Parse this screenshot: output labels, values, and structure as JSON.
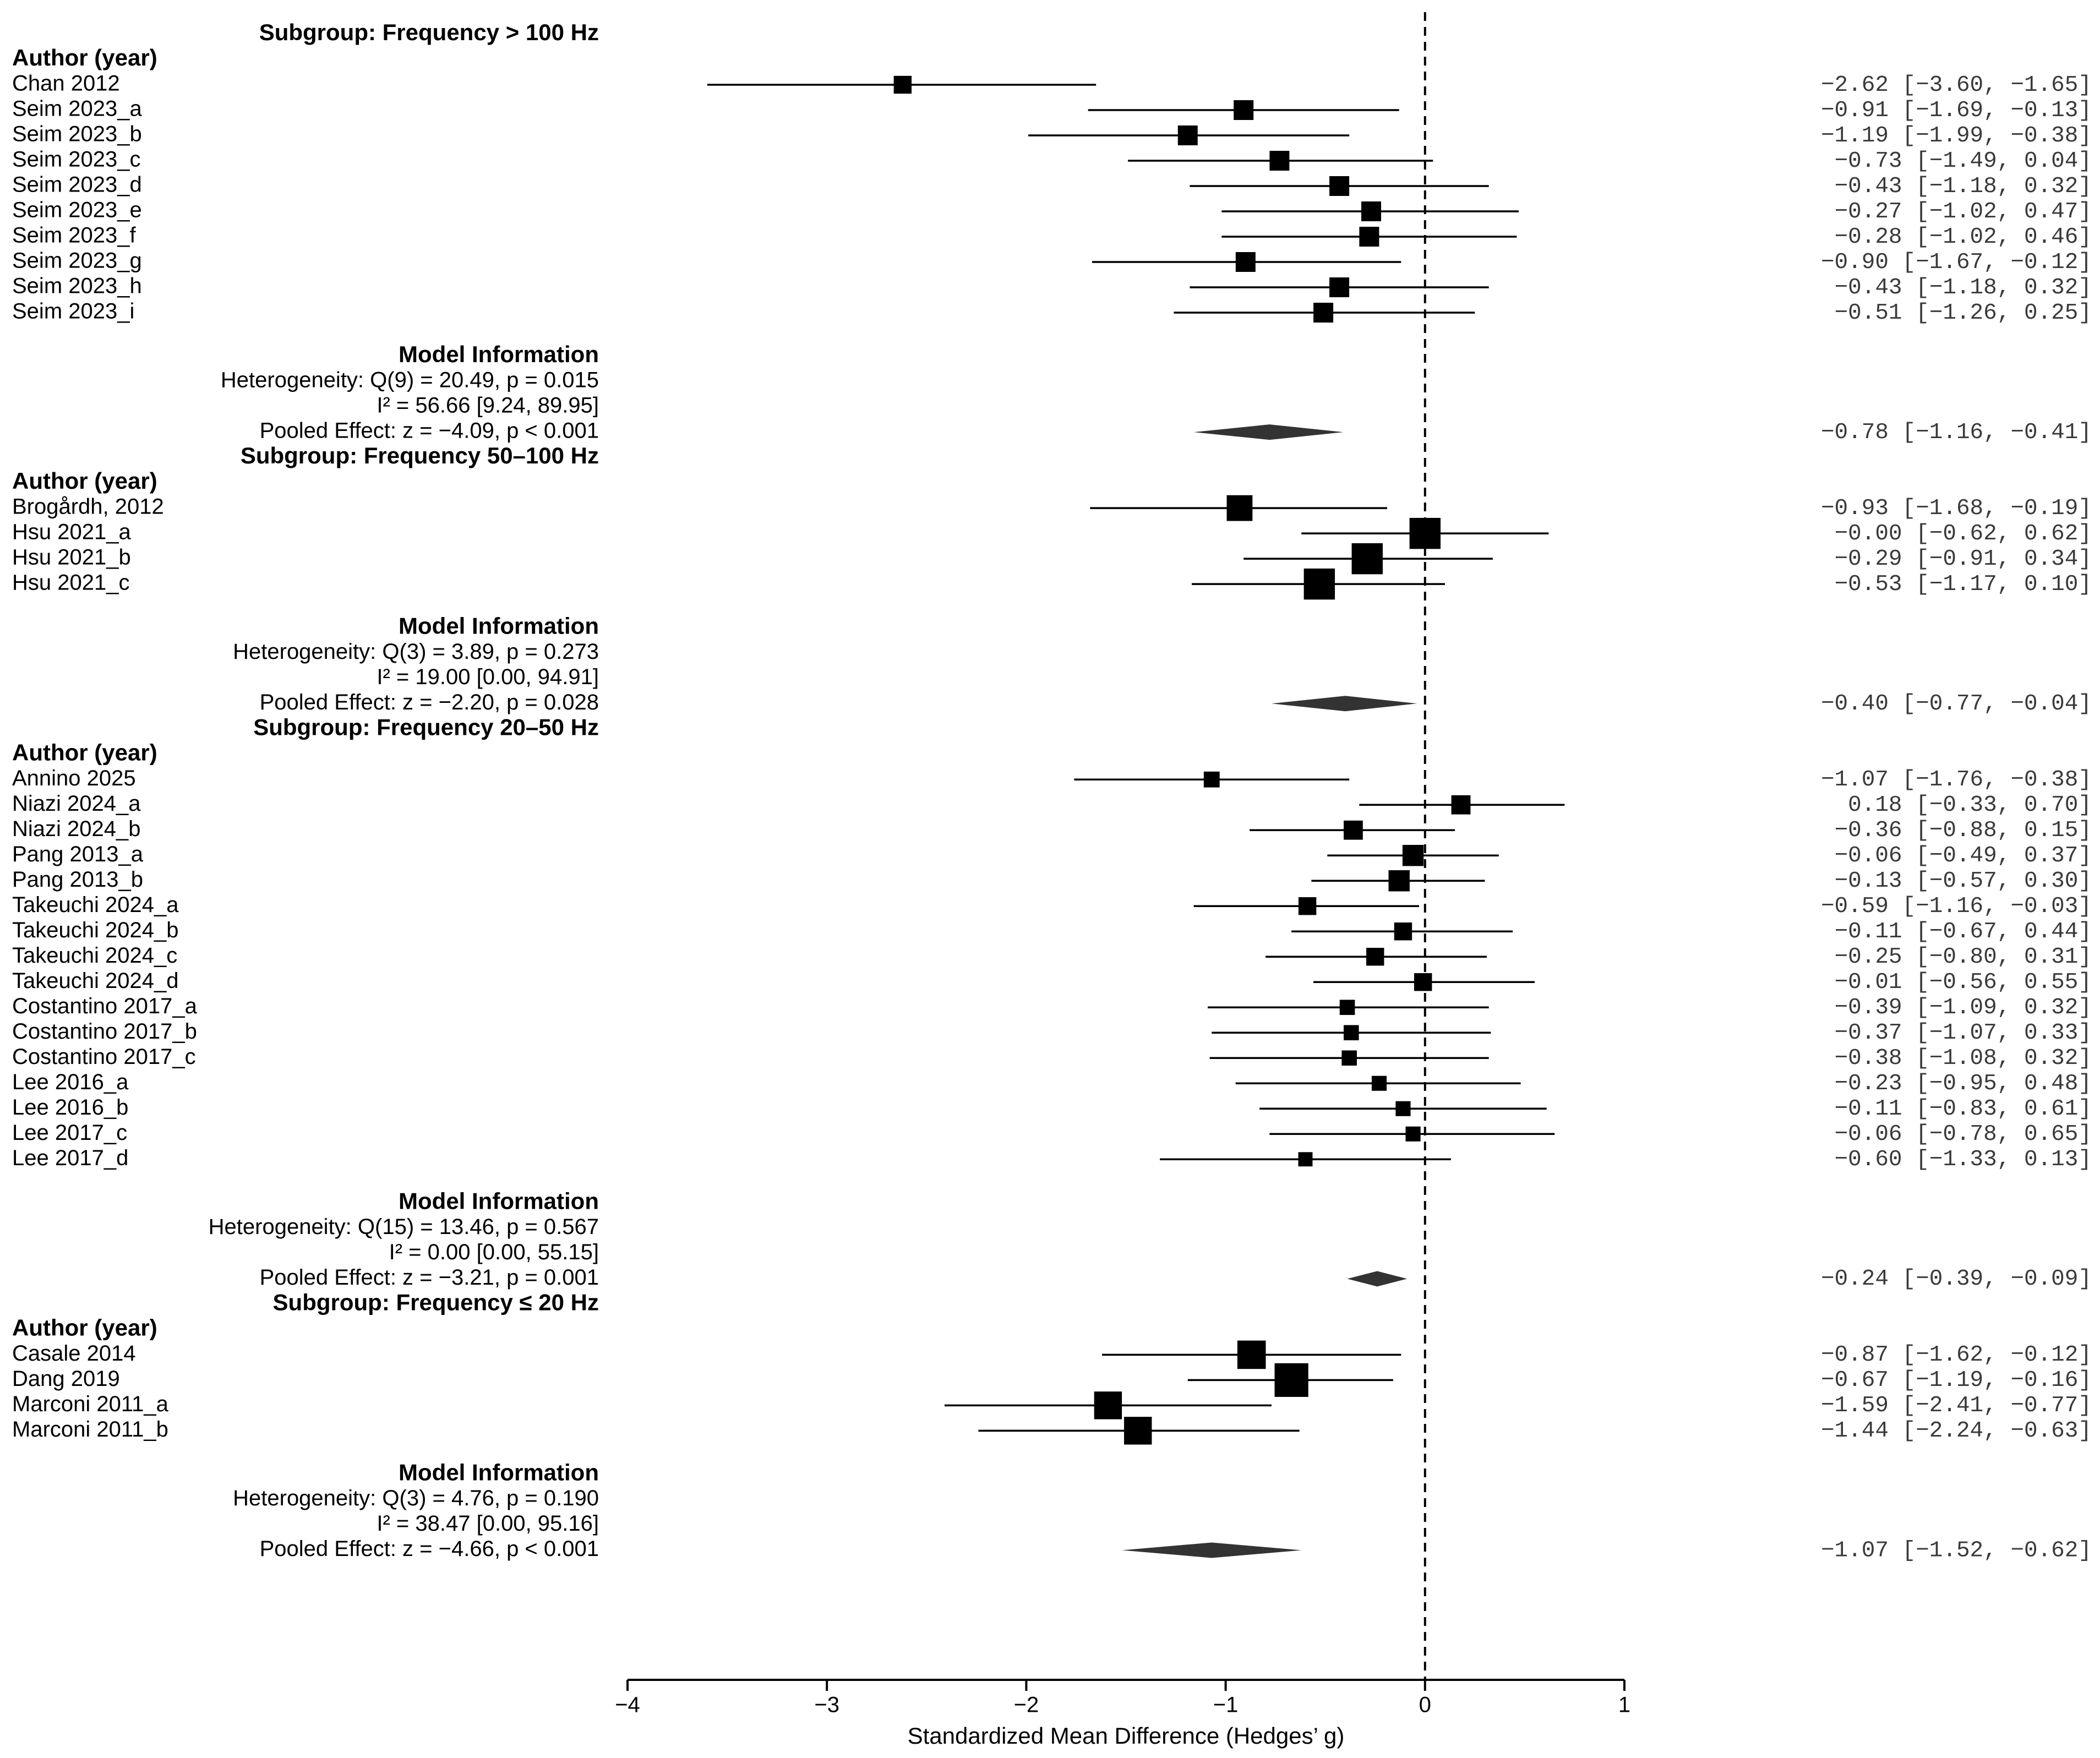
{
  "chart_data": {
    "type": "forest",
    "xlabel": "Standardized Mean Difference (Hedges’ g)",
    "xlim": [
      -4,
      1
    ],
    "xticks": [
      -4,
      -3,
      -2,
      -1,
      0,
      1
    ],
    "xtick_labels": [
      "−4",
      "−3",
      "−2",
      "−1",
      "0",
      "1"
    ],
    "reference_line": 0,
    "column_header": "Author (year)",
    "model_header": "Model Information",
    "subgroups": [
      {
        "title": "Subgroup: Frequency > 100 Hz",
        "studies": [
          {
            "label": "Chan 2012",
            "g": -2.62,
            "lo": -3.6,
            "hi": -1.65,
            "text": "−2.62 [−3.60, −1.65]",
            "w": 0.6
          },
          {
            "label": "Seim 2023_a",
            "g": -0.91,
            "lo": -1.69,
            "hi": -0.13,
            "text": "−0.91 [−1.69, −0.13]",
            "w": 0.75
          },
          {
            "label": "Seim 2023_b",
            "g": -1.19,
            "lo": -1.99,
            "hi": -0.38,
            "text": "−1.19 [−1.99, −0.38]",
            "w": 0.75
          },
          {
            "label": "Seim 2023_c",
            "g": -0.73,
            "lo": -1.49,
            "hi": 0.04,
            "text": "−0.73 [−1.49,  0.04]",
            "w": 0.75
          },
          {
            "label": "Seim 2023_d",
            "g": -0.43,
            "lo": -1.18,
            "hi": 0.32,
            "text": "−0.43 [−1.18,  0.32]",
            "w": 0.75
          },
          {
            "label": "Seim 2023_e",
            "g": -0.27,
            "lo": -1.02,
            "hi": 0.47,
            "text": "−0.27 [−1.02,  0.47]",
            "w": 0.75
          },
          {
            "label": "Seim 2023_f",
            "g": -0.28,
            "lo": -1.02,
            "hi": 0.46,
            "text": "−0.28 [−1.02,  0.46]",
            "w": 0.75
          },
          {
            "label": "Seim 2023_g",
            "g": -0.9,
            "lo": -1.67,
            "hi": -0.12,
            "text": "−0.90 [−1.67, −0.12]",
            "w": 0.75
          },
          {
            "label": "Seim 2023_h",
            "g": -0.43,
            "lo": -1.18,
            "hi": 0.32,
            "text": "−0.43 [−1.18,  0.32]",
            "w": 0.75
          },
          {
            "label": "Seim 2023_i",
            "g": -0.51,
            "lo": -1.26,
            "hi": 0.25,
            "text": "−0.51 [−1.26,  0.25]",
            "w": 0.75
          }
        ],
        "model": {
          "heterogeneity": "Heterogeneity: Q(9) = 20.49, p = 0.015",
          "i2": "I²  = 56.66 [9.24, 89.95]",
          "pooled": "Pooled Effect: z = −4.09, p < 0.001",
          "g": -0.78,
          "lo": -1.16,
          "hi": -0.41,
          "text": "−0.78 [−1.16, −0.41]"
        }
      },
      {
        "title": "Subgroup: Frequency 50–100 Hz",
        "studies": [
          {
            "label": "Brogårdh, 2012",
            "g": -0.93,
            "lo": -1.68,
            "hi": -0.19,
            "text": "−0.93 [−1.68, −0.19]",
            "w": 1.2
          },
          {
            "label": "Hsu 2021_a",
            "g": 0.0,
            "lo": -0.62,
            "hi": 0.62,
            "text": "−0.00 [−0.62,  0.62]",
            "w": 1.6
          },
          {
            "label": "Hsu 2021_b",
            "g": -0.29,
            "lo": -0.91,
            "hi": 0.34,
            "text": "−0.29 [−0.91,  0.34]",
            "w": 1.6
          },
          {
            "label": "Hsu 2021_c",
            "g": -0.53,
            "lo": -1.17,
            "hi": 0.1,
            "text": "−0.53 [−1.17,  0.10]",
            "w": 1.6
          }
        ],
        "model": {
          "heterogeneity": "Heterogeneity: Q(3) = 3.89, p = 0.273",
          "i2": "I²  = 19.00 [0.00, 94.91]",
          "pooled": "Pooled Effect: z = −2.20, p = 0.028",
          "g": -0.4,
          "lo": -0.77,
          "hi": -0.04,
          "text": "−0.40 [−0.77, −0.04]"
        }
      },
      {
        "title": "Subgroup: Frequency 20–50 Hz",
        "studies": [
          {
            "label": "Annino 2025",
            "g": -1.07,
            "lo": -1.76,
            "hi": -0.38,
            "text": "−1.07 [−1.76, −0.38]",
            "w": 0.45
          },
          {
            "label": "Niazi 2024_a",
            "g": 0.18,
            "lo": -0.33,
            "hi": 0.7,
            "text": " 0.18 [−0.33,  0.70]",
            "w": 0.7
          },
          {
            "label": "Niazi 2024_b",
            "g": -0.36,
            "lo": -0.88,
            "hi": 0.15,
            "text": "−0.36 [−0.88,  0.15]",
            "w": 0.7
          },
          {
            "label": "Pang 2013_a",
            "g": -0.06,
            "lo": -0.49,
            "hi": 0.37,
            "text": "−0.06 [−0.49,  0.37]",
            "w": 0.85
          },
          {
            "label": "Pang 2013_b",
            "g": -0.13,
            "lo": -0.57,
            "hi": 0.3,
            "text": "−0.13 [−0.57,  0.30]",
            "w": 0.85
          },
          {
            "label": "Takeuchi 2024_a",
            "g": -0.59,
            "lo": -1.16,
            "hi": -0.03,
            "text": "−0.59 [−1.16, −0.03]",
            "w": 0.6
          },
          {
            "label": "Takeuchi 2024_b",
            "g": -0.11,
            "lo": -0.67,
            "hi": 0.44,
            "text": "−0.11 [−0.67,  0.44]",
            "w": 0.6
          },
          {
            "label": "Takeuchi 2024_c",
            "g": -0.25,
            "lo": -0.8,
            "hi": 0.31,
            "text": "−0.25 [−0.80,  0.31]",
            "w": 0.6
          },
          {
            "label": "Takeuchi 2024_d",
            "g": -0.01,
            "lo": -0.56,
            "hi": 0.55,
            "text": "−0.01 [−0.56,  0.55]",
            "w": 0.6
          },
          {
            "label": "Costantino 2017_a",
            "g": -0.39,
            "lo": -1.09,
            "hi": 0.32,
            "text": "−0.39 [−1.09,  0.32]",
            "w": 0.4
          },
          {
            "label": "Costantino 2017_b",
            "g": -0.37,
            "lo": -1.07,
            "hi": 0.33,
            "text": "−0.37 [−1.07,  0.33]",
            "w": 0.4
          },
          {
            "label": "Costantino 2017_c",
            "g": -0.38,
            "lo": -1.08,
            "hi": 0.32,
            "text": "−0.38 [−1.08,  0.32]",
            "w": 0.4
          },
          {
            "label": "Lee 2016_a",
            "g": -0.23,
            "lo": -0.95,
            "hi": 0.48,
            "text": "−0.23 [−0.95,  0.48]",
            "w": 0.38
          },
          {
            "label": "Lee 2016_b",
            "g": -0.11,
            "lo": -0.83,
            "hi": 0.61,
            "text": "−0.11 [−0.83,  0.61]",
            "w": 0.38
          },
          {
            "label": "Lee 2017_c",
            "g": -0.06,
            "lo": -0.78,
            "hi": 0.65,
            "text": "−0.06 [−0.78,  0.65]",
            "w": 0.38
          },
          {
            "label": "Lee 2017_d",
            "g": -0.6,
            "lo": -1.33,
            "hi": 0.13,
            "text": "−0.60 [−1.33,  0.13]",
            "w": 0.33
          }
        ],
        "model": {
          "heterogeneity": "Heterogeneity: Q(15) = 13.46, p = 0.567",
          "i2": "I²  = 0.00 [0.00, 55.15]",
          "pooled": "Pooled Effect: z = −3.21, p = 0.001",
          "g": -0.24,
          "lo": -0.39,
          "hi": -0.09,
          "text": "−0.24 [−0.39, −0.09]"
        }
      },
      {
        "title": "Subgroup: Frequency ≤ 20 Hz",
        "studies": [
          {
            "label": "Casale 2014",
            "g": -0.87,
            "lo": -1.62,
            "hi": -0.12,
            "text": "−0.87 [−1.62, −0.12]",
            "w": 1.4
          },
          {
            "label": "Dang 2019",
            "g": -0.67,
            "lo": -1.19,
            "hi": -0.16,
            "text": "−0.67 [−1.19, −0.16]",
            "w": 1.8
          },
          {
            "label": "Marconi 2011_a",
            "g": -1.59,
            "lo": -2.41,
            "hi": -0.77,
            "text": "−1.59 [−2.41, −0.77]",
            "w": 1.35
          },
          {
            "label": "Marconi 2011_b",
            "g": -1.44,
            "lo": -2.24,
            "hi": -0.63,
            "text": "−1.44 [−2.24, −0.63]",
            "w": 1.35
          }
        ],
        "model": {
          "heterogeneity": "Heterogeneity: Q(3) = 4.76, p = 0.190",
          "i2": "I²  = 38.47 [0.00, 95.16]",
          "pooled": "Pooled Effect: z = −4.66, p < 0.001",
          "g": -1.07,
          "lo": -1.52,
          "hi": -0.62,
          "text": "−1.07 [−1.52, −0.62]"
        }
      }
    ]
  }
}
